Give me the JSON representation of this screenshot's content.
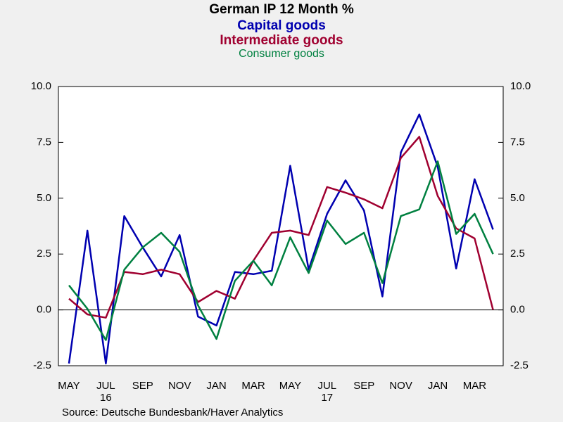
{
  "chart_data": {
    "type": "line",
    "title": "German IP 12 Month %",
    "source": "Source:  Deutsche Bundesbank/Haver Analytics",
    "categories": [
      "MAY",
      null,
      "JUL",
      null,
      "SEP",
      null,
      "NOV",
      null,
      "JAN",
      null,
      "MAR",
      null,
      "MAY",
      null,
      "JUL",
      null,
      "SEP",
      null,
      "NOV",
      null,
      "JAN",
      null,
      "MAR",
      null
    ],
    "sublabels": [
      null,
      null,
      "16",
      null,
      null,
      null,
      null,
      null,
      null,
      null,
      null,
      null,
      null,
      null,
      "17",
      null,
      null,
      null,
      null,
      null,
      null,
      null,
      null,
      null
    ],
    "series": [
      {
        "name": "Capital goods",
        "color": "#0000b0",
        "values": [
          -2.4,
          3.55,
          -2.4,
          4.2,
          2.8,
          1.5,
          3.35,
          -0.3,
          -0.7,
          1.7,
          1.6,
          1.75,
          6.45,
          1.8,
          4.3,
          5.8,
          4.45,
          0.6,
          7.05,
          8.75,
          6.4,
          1.85,
          5.85,
          3.6
        ]
      },
      {
        "name": "Intermediate goods",
        "color": "#a00030",
        "values": [
          0.5,
          -0.2,
          -0.35,
          1.7,
          1.6,
          1.8,
          1.6,
          0.35,
          0.85,
          0.5,
          2.2,
          3.45,
          3.55,
          3.35,
          5.5,
          5.25,
          4.95,
          4.55,
          6.8,
          7.75,
          5.1,
          3.65,
          3.2,
          0.0
        ]
      },
      {
        "name": "Consumer goods",
        "color": "#008040",
        "values": [
          1.1,
          0.05,
          -1.35,
          1.8,
          2.8,
          3.45,
          2.6,
          0.2,
          -1.3,
          1.3,
          2.2,
          1.1,
          3.25,
          1.65,
          4.0,
          2.95,
          3.45,
          1.2,
          4.2,
          4.5,
          6.65,
          3.4,
          4.3,
          2.5
        ]
      }
    ],
    "ylim": [
      -2.5,
      10
    ],
    "yticks": [
      {
        "value": -2.5,
        "label": "-2.5"
      },
      {
        "value": 0,
        "label": "0.0"
      },
      {
        "value": 2.5,
        "label": "2.5"
      },
      {
        "value": 5,
        "label": "5.0"
      },
      {
        "value": 7.5,
        "label": "7.5"
      },
      {
        "value": 10,
        "label": "10.0"
      }
    ],
    "y2lim": [
      -2.5,
      10
    ],
    "y2ticks": [
      {
        "value": -2.5,
        "label": "-2.5"
      },
      {
        "value": 0,
        "label": "0.0"
      },
      {
        "value": 2.5,
        "label": "2.5"
      },
      {
        "value": 5,
        "label": "5.0"
      },
      {
        "value": 7.5,
        "label": "7.5"
      },
      {
        "value": 10,
        "label": "10.0"
      }
    ],
    "zero_line": true
  }
}
